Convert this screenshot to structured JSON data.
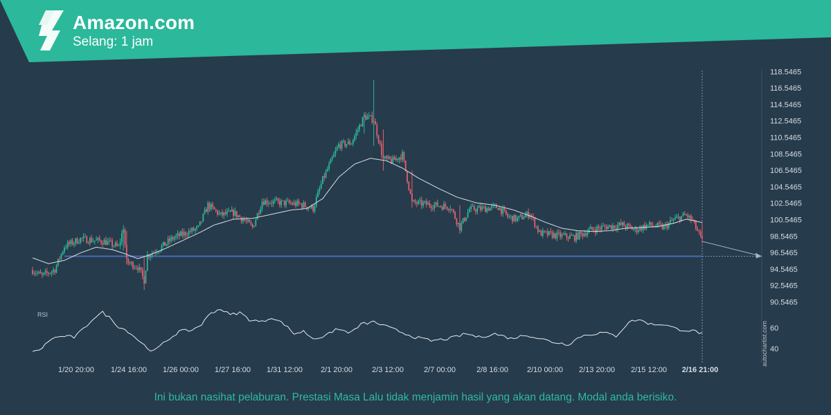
{
  "header": {
    "title": "Amazon.com",
    "subtitle": "Selang: 1 jam",
    "logo": "autochartist-logo",
    "banner_color": "#2bb89b"
  },
  "footer": {
    "disclaimer": "Ini bukan nasihat pelaburan. Prestasi Masa Lalu tidak menjamin hasil yang akan datang. Modal anda berisiko."
  },
  "watermark": "autochartist.com",
  "chart_data": {
    "type": "candlestick",
    "ylim": [
      89.5,
      119.5
    ],
    "y_ticks": [
      "118.5465",
      "116.5465",
      "114.5465",
      "112.5465",
      "110.5465",
      "108.5465",
      "106.5465",
      "104.5465",
      "102.5465",
      "100.5465",
      "98.5465",
      "96.5465",
      "94.5465",
      "92.5465",
      "90.5465"
    ],
    "x_ticks": [
      "1/20 20:00",
      "1/24 16:00",
      "1/26 00:00",
      "1/27 16:00",
      "1/31 12:00",
      "2/1 20:00",
      "2/3 12:00",
      "2/7 00:00",
      "2/8 16:00",
      "2/10 00:00",
      "2/13 20:00",
      "2/15 12:00"
    ],
    "last_time_label": "2/16 21:00",
    "support_level": 96.1,
    "price_anchors": [
      [
        0,
        94.4
      ],
      [
        6,
        93.7
      ],
      [
        14,
        94.5
      ],
      [
        20,
        97.3
      ],
      [
        30,
        98.2
      ],
      [
        45,
        97.9
      ],
      [
        54,
        97.2
      ],
      [
        57,
        99.6
      ],
      [
        59,
        95.4
      ],
      [
        66,
        94.8
      ],
      [
        70,
        93.2
      ],
      [
        72,
        96.2
      ],
      [
        80,
        97.1
      ],
      [
        88,
        98.3
      ],
      [
        96,
        98.9
      ],
      [
        104,
        99.5
      ],
      [
        110,
        102.3
      ],
      [
        118,
        101.1
      ],
      [
        126,
        101.4
      ],
      [
        132,
        100.6
      ],
      [
        138,
        99.6
      ],
      [
        144,
        102.8
      ],
      [
        156,
        102.6
      ],
      [
        168,
        102.4
      ],
      [
        176,
        101.9
      ],
      [
        182,
        105.4
      ],
      [
        192,
        109.6
      ],
      [
        200,
        109.9
      ],
      [
        208,
        113.1
      ],
      [
        214,
        112.7
      ],
      [
        220,
        107.9
      ],
      [
        226,
        107.7
      ],
      [
        232,
        108.4
      ],
      [
        238,
        102.6
      ],
      [
        248,
        102.4
      ],
      [
        262,
        102.1
      ],
      [
        268,
        99.6
      ],
      [
        274,
        101.8
      ],
      [
        284,
        101.9
      ],
      [
        292,
        102.1
      ],
      [
        298,
        100.9
      ],
      [
        304,
        100.6
      ],
      [
        312,
        101.3
      ],
      [
        318,
        98.9
      ],
      [
        330,
        98.6
      ],
      [
        340,
        98.4
      ],
      [
        350,
        99.3
      ],
      [
        360,
        99.7
      ],
      [
        370,
        99.9
      ],
      [
        378,
        99.3
      ],
      [
        386,
        99.9
      ],
      [
        396,
        99.6
      ],
      [
        402,
        100.5
      ],
      [
        410,
        101.1
      ],
      [
        414,
        100.4
      ],
      [
        420,
        97.9
      ]
    ],
    "ma_anchors": [
      [
        0,
        95.9
      ],
      [
        10,
        95.2
      ],
      [
        20,
        95.6
      ],
      [
        30,
        96.5
      ],
      [
        40,
        97.2
      ],
      [
        50,
        96.9
      ],
      [
        58,
        96.4
      ],
      [
        66,
        95.8
      ],
      [
        74,
        96.3
      ],
      [
        84,
        97.1
      ],
      [
        94,
        98.0
      ],
      [
        104,
        98.9
      ],
      [
        114,
        99.9
      ],
      [
        126,
        100.6
      ],
      [
        138,
        100.7
      ],
      [
        150,
        101.2
      ],
      [
        162,
        101.7
      ],
      [
        172,
        101.9
      ],
      [
        182,
        103.1
      ],
      [
        192,
        105.7
      ],
      [
        202,
        107.3
      ],
      [
        212,
        108.0
      ],
      [
        222,
        107.7
      ],
      [
        232,
        106.8
      ],
      [
        242,
        105.6
      ],
      [
        254,
        104.4
      ],
      [
        266,
        103.3
      ],
      [
        278,
        102.6
      ],
      [
        290,
        102.3
      ],
      [
        302,
        101.7
      ],
      [
        312,
        101.0
      ],
      [
        322,
        100.2
      ],
      [
        332,
        99.5
      ],
      [
        342,
        99.2
      ],
      [
        352,
        99.1
      ],
      [
        362,
        99.2
      ],
      [
        372,
        99.5
      ],
      [
        382,
        99.6
      ],
      [
        392,
        99.7
      ],
      [
        402,
        100.1
      ],
      [
        410,
        100.6
      ],
      [
        420,
        100.2
      ]
    ],
    "forecast": {
      "from": 97.9,
      "to": 96.1
    },
    "rsi": {
      "label": "RSI",
      "levels": [
        "60",
        "40"
      ],
      "anchors": [
        [
          0,
          34
        ],
        [
          6,
          38
        ],
        [
          12,
          46
        ],
        [
          20,
          48
        ],
        [
          26,
          47
        ],
        [
          32,
          54
        ],
        [
          38,
          63
        ],
        [
          44,
          68
        ],
        [
          48,
          64
        ],
        [
          54,
          56
        ],
        [
          60,
          52
        ],
        [
          66,
          45
        ],
        [
          72,
          38
        ],
        [
          76,
          35
        ],
        [
          84,
          44
        ],
        [
          92,
          52
        ],
        [
          100,
          53
        ],
        [
          106,
          58
        ],
        [
          112,
          68
        ],
        [
          118,
          71
        ],
        [
          124,
          66
        ],
        [
          130,
          68
        ],
        [
          136,
          62
        ],
        [
          144,
          60
        ],
        [
          150,
          64
        ],
        [
          158,
          58
        ],
        [
          164,
          50
        ],
        [
          170,
          52
        ],
        [
          176,
          46
        ],
        [
          184,
          48
        ],
        [
          190,
          54
        ],
        [
          200,
          51
        ],
        [
          206,
          58
        ],
        [
          214,
          60
        ],
        [
          224,
          55
        ],
        [
          232,
          51
        ],
        [
          240,
          47
        ],
        [
          250,
          44
        ],
        [
          262,
          46
        ],
        [
          272,
          50
        ],
        [
          280,
          47
        ],
        [
          290,
          50
        ],
        [
          300,
          46
        ],
        [
          310,
          49
        ],
        [
          318,
          46
        ],
        [
          326,
          43
        ],
        [
          336,
          41
        ],
        [
          344,
          48
        ],
        [
          352,
          50
        ],
        [
          358,
          51
        ],
        [
          366,
          48
        ],
        [
          374,
          60
        ],
        [
          380,
          62
        ],
        [
          388,
          58
        ],
        [
          396,
          58
        ],
        [
          404,
          54
        ],
        [
          410,
          53
        ],
        [
          416,
          52
        ],
        [
          420,
          50
        ]
      ]
    }
  }
}
